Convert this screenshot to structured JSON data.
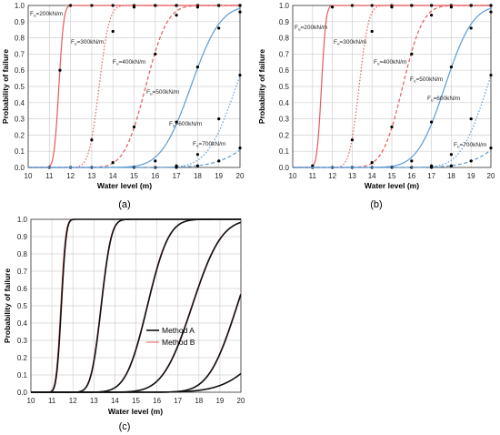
{
  "chart_data": [
    {
      "panel": "(a)",
      "type": "line",
      "xlabel": "Water level (m)",
      "ylabel": "Probability of failure",
      "xlim": [
        10,
        20
      ],
      "ylim": [
        0,
        1.0
      ],
      "x_ticks": [
        "10",
        "11",
        "12",
        "13",
        "14",
        "15",
        "16",
        "17",
        "18",
        "19",
        "20"
      ],
      "y_ticks": [
        "0.0",
        "0.1",
        "0.2",
        "0.3",
        "0.4",
        "0.5",
        "0.6",
        "0.7",
        "0.8",
        "0.9",
        "1.0"
      ],
      "grid": true,
      "series": [
        {
          "name": "F_u=200kN/m",
          "sub": "u",
          "label_main": "F",
          "label_rest": "=200kN/m",
          "color": "#e8595a",
          "dash": "",
          "mu": 11.45,
          "sigma": 0.18,
          "points": [
            [
              11,
              0.0
            ],
            [
              11.5,
              0.6
            ],
            [
              12,
              1.0
            ],
            [
              13,
              1.0
            ],
            [
              14,
              1.0
            ],
            [
              15,
              1.0
            ],
            [
              16,
              1.0
            ],
            [
              17,
              1.0
            ],
            [
              18,
              1.0
            ],
            [
              19,
              1.0
            ],
            [
              20,
              1.0
            ]
          ]
        },
        {
          "name": "F_u=300kN/m",
          "sub": "u",
          "label_main": "F",
          "label_rest": "=300kN/m",
          "color": "#e8595a",
          "dash": "1.5,2",
          "mu": 13.35,
          "sigma": 0.38,
          "points": [
            [
              12,
              0.0
            ],
            [
              13,
              0.17
            ],
            [
              14,
              0.84
            ],
            [
              15,
              0.99
            ],
            [
              16,
              1.0
            ],
            [
              17,
              1.0
            ],
            [
              18,
              1.0
            ],
            [
              19,
              1.0
            ],
            [
              20,
              1.0
            ]
          ]
        },
        {
          "name": "F_u=400kN/m",
          "sub": "u",
          "label_main": "F",
          "label_rest": "=400kN/m",
          "color": "#e8595a",
          "dash": "4,2.5",
          "mu": 15.55,
          "sigma": 0.8,
          "points": [
            [
              13,
              0.0
            ],
            [
              14,
              0.03
            ],
            [
              15,
              0.25
            ],
            [
              16,
              0.7
            ],
            [
              17,
              0.94
            ],
            [
              18,
              0.99
            ],
            [
              19,
              1.0
            ],
            [
              20,
              1.0
            ]
          ]
        },
        {
          "name": "F_u=500kN/m",
          "sub": "u",
          "label_main": "F",
          "label_rest": "=500kN/m",
          "color": "#5b9bd5",
          "dash": "",
          "mu": 17.68,
          "sigma": 1.1,
          "points": [
            [
              15,
              0.0
            ],
            [
              16,
              0.04
            ],
            [
              17,
              0.28
            ],
            [
              18,
              0.62
            ],
            [
              19,
              0.86
            ],
            [
              20,
              0.96
            ]
          ]
        },
        {
          "name": "F_u=600kN/m",
          "sub": "u",
          "label_main": "F",
          "label_rest": "=600kN/m",
          "color": "#5b9bd5",
          "dash": "1.5,2",
          "mu": 19.82,
          "sigma": 1.07,
          "points": [
            [
              16,
              0.0
            ],
            [
              17,
              0.01
            ],
            [
              18,
              0.08
            ],
            [
              19,
              0.3
            ],
            [
              20,
              0.57
            ]
          ]
        },
        {
          "name": "F_u=700kN/m",
          "sub": "u",
          "label_main": "F",
          "label_rest": "=700kN/m",
          "color": "#5b9bd5",
          "dash": "4,2.5",
          "mu": 22.35,
          "sigma": 1.9,
          "points": [
            [
              17,
              0.0
            ],
            [
              18,
              0.01
            ],
            [
              19,
              0.04
            ],
            [
              20,
              0.12
            ]
          ]
        }
      ]
    },
    {
      "panel": "(b)",
      "type": "line",
      "xlabel": "Water level (m)",
      "ylabel": "Probability of failure",
      "xlim": [
        10,
        20
      ],
      "ylim": [
        0,
        1.0
      ],
      "x_ticks": [
        "10",
        "11",
        "12",
        "13",
        "14",
        "15",
        "16",
        "17",
        "18",
        "19",
        "20"
      ],
      "y_ticks": [
        "0.0",
        "0.1",
        "0.2",
        "0.3",
        "0.4",
        "0.5",
        "0.6",
        "0.7",
        "0.8",
        "0.9",
        "1.0"
      ],
      "grid": true,
      "series": [
        {
          "name": "F_u=200kN/m",
          "sub": "u",
          "label_main": "F",
          "label_rest": "=200kN/m",
          "color": "#e8595a",
          "dash": "",
          "mu": 11.45,
          "sigma": 0.18,
          "points": [
            [
              11,
              0.01
            ],
            [
              12,
              0.99
            ],
            [
              13,
              1.0
            ],
            [
              14,
              1.0
            ],
            [
              15,
              1.0
            ],
            [
              16,
              1.0
            ],
            [
              17,
              1.0
            ],
            [
              18,
              1.0
            ],
            [
              19,
              1.0
            ],
            [
              20,
              1.0
            ]
          ]
        },
        {
          "name": "F_u=300kN/m",
          "sub": "u",
          "label_main": "F",
          "label_rest": "=300kN/m",
          "color": "#e8595a",
          "dash": "1.5,2",
          "mu": 13.35,
          "sigma": 0.38,
          "points": [
            [
              11,
              0.0
            ],
            [
              12,
              0.0
            ],
            [
              13,
              0.17
            ],
            [
              14,
              0.84
            ],
            [
              15,
              0.99
            ],
            [
              16,
              1.0
            ],
            [
              17,
              1.0
            ],
            [
              18,
              1.0
            ],
            [
              19,
              1.0
            ],
            [
              20,
              1.0
            ]
          ]
        },
        {
          "name": "F_u=400kN/m",
          "sub": "u",
          "label_main": "F",
          "label_rest": "=400kN/m",
          "color": "#e8595a",
          "dash": "4,2.5",
          "mu": 15.55,
          "sigma": 0.8,
          "points": [
            [
              13,
              0.0
            ],
            [
              14,
              0.03
            ],
            [
              15,
              0.25
            ],
            [
              16,
              0.7
            ],
            [
              17,
              0.94
            ],
            [
              18,
              0.99
            ],
            [
              19,
              1.0
            ],
            [
              20,
              1.0
            ]
          ]
        },
        {
          "name": "F_u=500kN/m",
          "sub": "u",
          "label_main": "F",
          "label_rest": "=500kN/m",
          "color": "#5b9bd5",
          "dash": "",
          "mu": 17.68,
          "sigma": 1.1,
          "points": [
            [
              14,
              0.0
            ],
            [
              15,
              0.0
            ],
            [
              16,
              0.04
            ],
            [
              17,
              0.28
            ],
            [
              18,
              0.62
            ],
            [
              19,
              0.86
            ],
            [
              20,
              0.96
            ]
          ]
        },
        {
          "name": "F_u=600kN/m",
          "sub": "u",
          "label_main": "F",
          "label_rest": "=600kN/m",
          "color": "#5b9bd5",
          "dash": "1.5,2",
          "mu": 19.82,
          "sigma": 1.07,
          "points": [
            [
              16,
              0.0
            ],
            [
              17,
              0.01
            ],
            [
              18,
              0.08
            ],
            [
              19,
              0.3
            ],
            [
              20,
              0.57
            ]
          ]
        },
        {
          "name": "F_u=700kN/m",
          "sub": "u",
          "label_main": "F",
          "label_rest": "=700kN/m",
          "color": "#5b9bd5",
          "dash": "4,2.5",
          "mu": 22.35,
          "sigma": 1.9,
          "points": [
            [
              17,
              0.0
            ],
            [
              18,
              0.01
            ],
            [
              19,
              0.04
            ],
            [
              20,
              0.12
            ]
          ]
        }
      ]
    },
    {
      "panel": "(c)",
      "type": "line",
      "xlabel": "Water level (m)",
      "ylabel": "Probability of failure",
      "xlim": [
        10,
        20
      ],
      "ylim": [
        0,
        1.0
      ],
      "x_ticks": [
        "10",
        "11",
        "12",
        "13",
        "14",
        "15",
        "16",
        "17",
        "18",
        "19",
        "20"
      ],
      "y_ticks": [
        "0.0",
        "0.1",
        "0.2",
        "0.3",
        "0.4",
        "0.5",
        "0.6",
        "0.7",
        "0.8",
        "0.9",
        "1.0"
      ],
      "grid": true,
      "legend_position": "center-right",
      "series": [
        {
          "name": "Method A",
          "color": "#111111",
          "curves": [
            {
              "mu": 11.45,
              "sigma": 0.18
            },
            {
              "mu": 13.35,
              "sigma": 0.38
            },
            {
              "mu": 15.55,
              "sigma": 0.8
            },
            {
              "mu": 17.68,
              "sigma": 1.1
            },
            {
              "mu": 19.82,
              "sigma": 1.07
            },
            {
              "mu": 22.35,
              "sigma": 1.9
            }
          ]
        },
        {
          "name": "Method B",
          "color": "#e8595a",
          "curves": [
            {
              "mu": 11.42,
              "sigma": 0.18
            },
            {
              "mu": 13.33,
              "sigma": 0.38
            },
            {
              "mu": 15.53,
              "sigma": 0.8
            },
            {
              "mu": 17.66,
              "sigma": 1.1
            },
            {
              "mu": 19.8,
              "sigma": 1.07
            },
            {
              "mu": 22.33,
              "sigma": 1.9
            }
          ]
        }
      ]
    }
  ],
  "colors": {
    "grid": "#d0d0d0",
    "axis": "#333333",
    "marker": "#000000"
  }
}
